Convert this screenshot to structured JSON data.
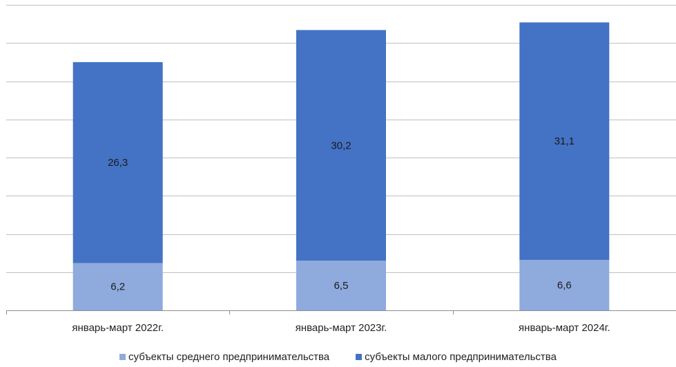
{
  "chart_data": {
    "type": "bar",
    "stacked": true,
    "categories": [
      "январь-март 2022г.",
      "январь-март 2023г.",
      "январь-март 2024г."
    ],
    "series": [
      {
        "name": "субъекты среднего предпринимательства",
        "values": [
          6.2,
          6.5,
          6.6
        ],
        "color": "#8faadc"
      },
      {
        "name": "субъекты малого предпринимательства",
        "values": [
          26.3,
          30.2,
          31.1
        ],
        "color": "#4472c4"
      }
    ],
    "ylim": [
      0,
      40
    ],
    "grid": true,
    "legend_position": "bottom",
    "title": "",
    "xlabel": "",
    "ylabel": ""
  }
}
